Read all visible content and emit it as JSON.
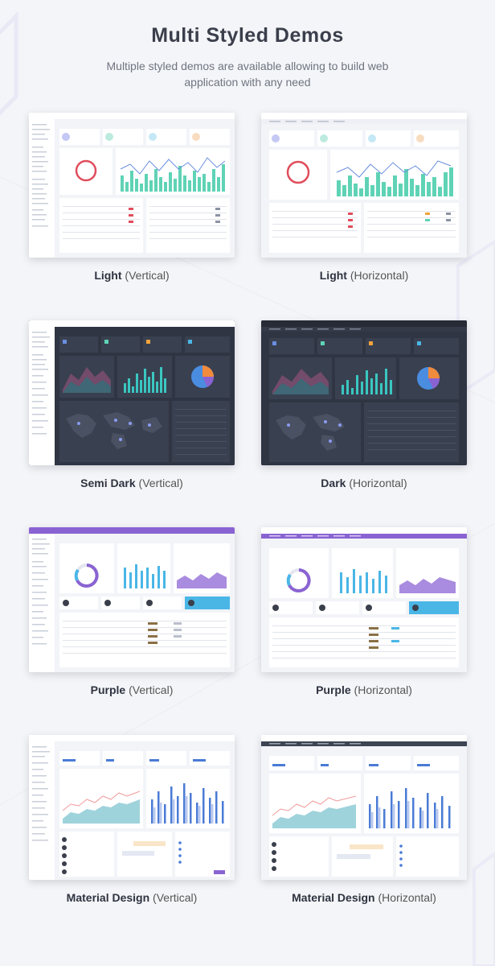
{
  "header": {
    "title": "Multi Styled Demos",
    "subtitle": "Multiple styled demos are available allowing to build web application with any need"
  },
  "demos": [
    {
      "name": "Light",
      "style": "Vertical"
    },
    {
      "name": "Light",
      "style": "Horizontal"
    },
    {
      "name": "Semi Dark",
      "style": "Vertical"
    },
    {
      "name": "Dark",
      "style": "Horizontal"
    },
    {
      "name": "Purple",
      "style": "Vertical"
    },
    {
      "name": "Purple",
      "style": "Horizontal"
    },
    {
      "name": "Material Design",
      "style": "Vertical"
    },
    {
      "name": "Material Design",
      "style": "Horizontal"
    }
  ],
  "theme_colors": {
    "light_bg": "#f3f5f9",
    "dark_bg": "#2f3542",
    "semi_dark_sidebar": "#ffffff",
    "purple": "#8a63d2",
    "material_accent": "#4a7bd6",
    "chart_teal": "#5fd3b5",
    "chart_blue": "#6b8fe0",
    "accent_red": "#e04d5c"
  }
}
